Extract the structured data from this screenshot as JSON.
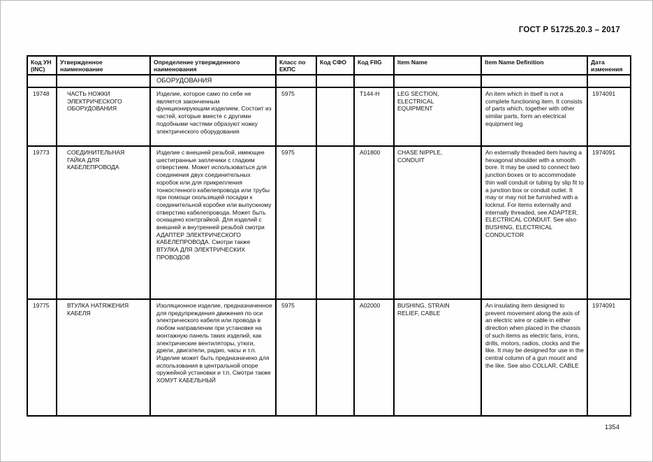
{
  "page": {
    "doc_title": "ГОСТ Р 51725.20.3 – 2017",
    "page_number": "1354"
  },
  "table": {
    "headers": [
      "Код УН (INC)",
      "Утвержденное наименование",
      "Определение утвержденного наименования",
      "Класс по ЕКПС",
      "Код СФО",
      "Код FIIG",
      "Item Name",
      "Item Name Definition",
      "Дата изменения"
    ],
    "continuation_row": {
      "approved_definition": "ОБОРУДОВАНИЯ"
    },
    "rows": [
      {
        "inc_code": "19748",
        "approved_name": "ЧАСТЬ НОЖКИ\nЭЛЕКТРИЧЕСКОГО\nОБОРУДОВАНИЯ",
        "approved_definition": "Изделие, которое само по себе не является законченным функционирующим изделием. Состоит из частей, которые вместе с другими подобными частями образуют ножку электрического оборудования",
        "ekps_class": "5975",
        "sfo_code": "",
        "fiig_code": "T144-H",
        "item_name": "LEG SECTION,\nELECTRICAL\nEQUIPMENT",
        "item_name_definition": "An item which in itself is not a complete functioning item. It consists of parts which, together with other similar parts, form an electrical equipment leg",
        "change_date": "1974091"
      },
      {
        "inc_code": "19773",
        "approved_name": "СОЕДИНИТЕЛЬНАЯ\nГАЙКА ДЛЯ\nКАБЕЛЕПРОВОДА",
        "approved_definition": "Изделие с внешней резьбой, имеющее шестигранные заплечики с гладким отверстием. Может использоваться для соединения двух соединительных коробок или для прикрепления тонкостенного кабелепровода или трубы при помощи скользящей посадки к соединительной коробке или выпускному отверстию кабелепровода. Может быть оснащено контргайкой. Для изделий с внешней и внутренней резьбой смотри АДАПТЕР ЭЛЕКТРИЧЕСКОГО КАБЕЛЕПРОВОДА. Смотри также ВТУЛКА ДЛЯ ЭЛЕКТРИЧЕСКИХ ПРОВОДОВ",
        "ekps_class": "5975",
        "sfo_code": "",
        "fiig_code": "A01800",
        "item_name": "CHASE NIPPLE,\nCONDUIT",
        "item_name_definition": "An externally threaded item having a hexagonal shoulder with a smooth bore. It may be used to connect two junction boxes or to accommodate thin wall conduit or tubing by slip fit to a junction box or conduit outlet. It may or may not be furnished with a locknut. For items externally and internally threaded, see ADAPTER, ELECTRICAL CONDUIT. See also BUSHING, ELECTRICAL CONDUCTOR",
        "change_date": "1974091"
      },
      {
        "inc_code": "19775",
        "approved_name": "ВТУЛКА НАТЯЖЕНИЯ\nКАБЕЛЯ",
        "approved_definition": "Изоляционное изделие, предназначенное для предупреждения движения по оси электрического кабеля или провода в любом направлении при установке на монтажную панель таких изделий, как электрические вентиляторы, утюги, дрели, двигатели, радио, часы и т.п. Изделие может быть предназначено для использования в центральной опоре оружейной установки и т.п. Смотри также ХОМУТ КАБЕЛЬНЫЙ",
        "ekps_class": "5975",
        "sfo_code": "",
        "fiig_code": "A02000",
        "item_name": "BUSHING, STRAIN\nRELIEF, CABLE",
        "item_name_definition": "An insulating item designed to prevent movement along the axis of an electric wire or cable in either direction when placed in the chassis of such items as electric fans, irons, drills, motors, radios, clocks and the like. It may be designed for use in the central column of a gun mount and the like. See also COLLAR, CABLE",
        "change_date": "1974091"
      }
    ]
  }
}
